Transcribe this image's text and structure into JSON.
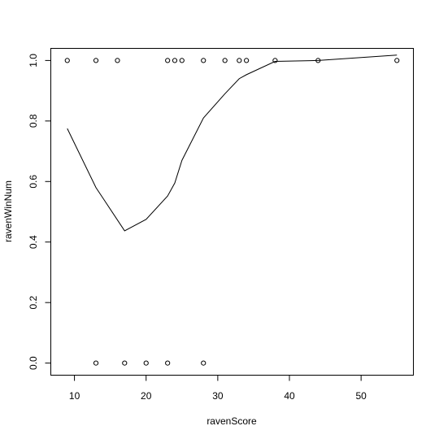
{
  "chart_data": {
    "type": "scatter",
    "xlabel": "ravenScore",
    "ylabel": "ravenWinNum",
    "xlim": [
      6.7,
      57.3
    ],
    "ylim": [
      -0.04,
      1.04
    ],
    "xticks": [
      10,
      20,
      30,
      40,
      50
    ],
    "yticks": [
      0.0,
      0.2,
      0.4,
      0.6,
      0.8,
      1.0
    ],
    "xtick_labels": [
      "10",
      "20",
      "30",
      "40",
      "50"
    ],
    "ytick_labels": [
      "0.0",
      "0.2",
      "0.4",
      "0.6",
      "0.8",
      "1.0"
    ],
    "grid": false,
    "series": [
      {
        "type": "scatter",
        "marker": "open-circle",
        "points": [
          [
            9,
            1
          ],
          [
            13,
            1
          ],
          [
            16,
            1
          ],
          [
            23,
            1
          ],
          [
            24,
            1
          ],
          [
            25,
            1
          ],
          [
            28,
            1
          ],
          [
            31,
            1
          ],
          [
            33,
            1
          ],
          [
            34,
            1
          ],
          [
            38,
            1
          ],
          [
            44,
            1
          ],
          [
            55,
            1
          ],
          [
            13,
            0
          ],
          [
            17,
            0
          ],
          [
            20,
            0
          ],
          [
            23,
            0
          ],
          [
            28,
            0
          ]
        ]
      },
      {
        "type": "line",
        "points": [
          [
            9,
            0.775
          ],
          [
            13,
            0.58
          ],
          [
            17,
            0.437
          ],
          [
            20,
            0.475
          ],
          [
            23,
            0.552
          ],
          [
            24,
            0.595
          ],
          [
            25,
            0.67
          ],
          [
            28,
            0.81
          ],
          [
            31,
            0.89
          ],
          [
            33,
            0.94
          ],
          [
            34,
            0.953
          ],
          [
            38,
            0.997
          ],
          [
            44,
            1.0
          ],
          [
            55,
            1.018
          ]
        ]
      }
    ]
  }
}
